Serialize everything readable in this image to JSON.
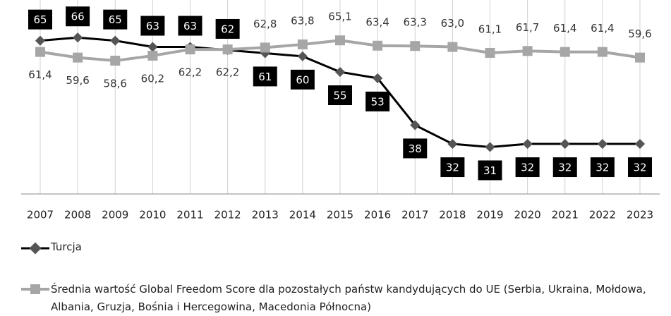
{
  "chart_data": {
    "type": "line",
    "categories": [
      "2007",
      "2008",
      "2009",
      "2010",
      "2011",
      "2012",
      "2013",
      "2014",
      "2015",
      "2016",
      "2017",
      "2018",
      "2019",
      "2020",
      "2021",
      "2022",
      "2023"
    ],
    "series": [
      {
        "name": "Turcja",
        "color": "#000000",
        "marker_color": "#555555",
        "marker": "diamond",
        "values": [
          65,
          66,
          65,
          63,
          63,
          62,
          61,
          60,
          55,
          53,
          38,
          32,
          31,
          32,
          32,
          32,
          32
        ]
      },
      {
        "name": "Średnia wartość Global Freedom Score dla pozostałych państw kandydujących do UE (Serbia, Ukraina, Mołdowa, Albania, Gruzja, Bośnia i Hercegowina, Macedonia Północna)",
        "color": "#a6a6a6",
        "marker_color": "#a6a6a6",
        "marker": "square",
        "values": [
          61.4,
          59.6,
          58.6,
          60.2,
          62.2,
          62.2,
          62.8,
          63.8,
          65.1,
          63.4,
          63.3,
          63.0,
          61.1,
          61.7,
          61.4,
          61.4,
          59.6
        ],
        "value_labels": [
          "61,4",
          "59,6",
          "58,6",
          "60,2",
          "62,2",
          "62,2",
          "62,8",
          "63,8",
          "65,1",
          "63,4",
          "63,3",
          "63,0",
          "61,1",
          "61,7",
          "61,4",
          "61,4",
          "59,6"
        ]
      }
    ],
    "ylim": [
      16,
      78
    ],
    "grid": true,
    "legend": "bottom"
  }
}
